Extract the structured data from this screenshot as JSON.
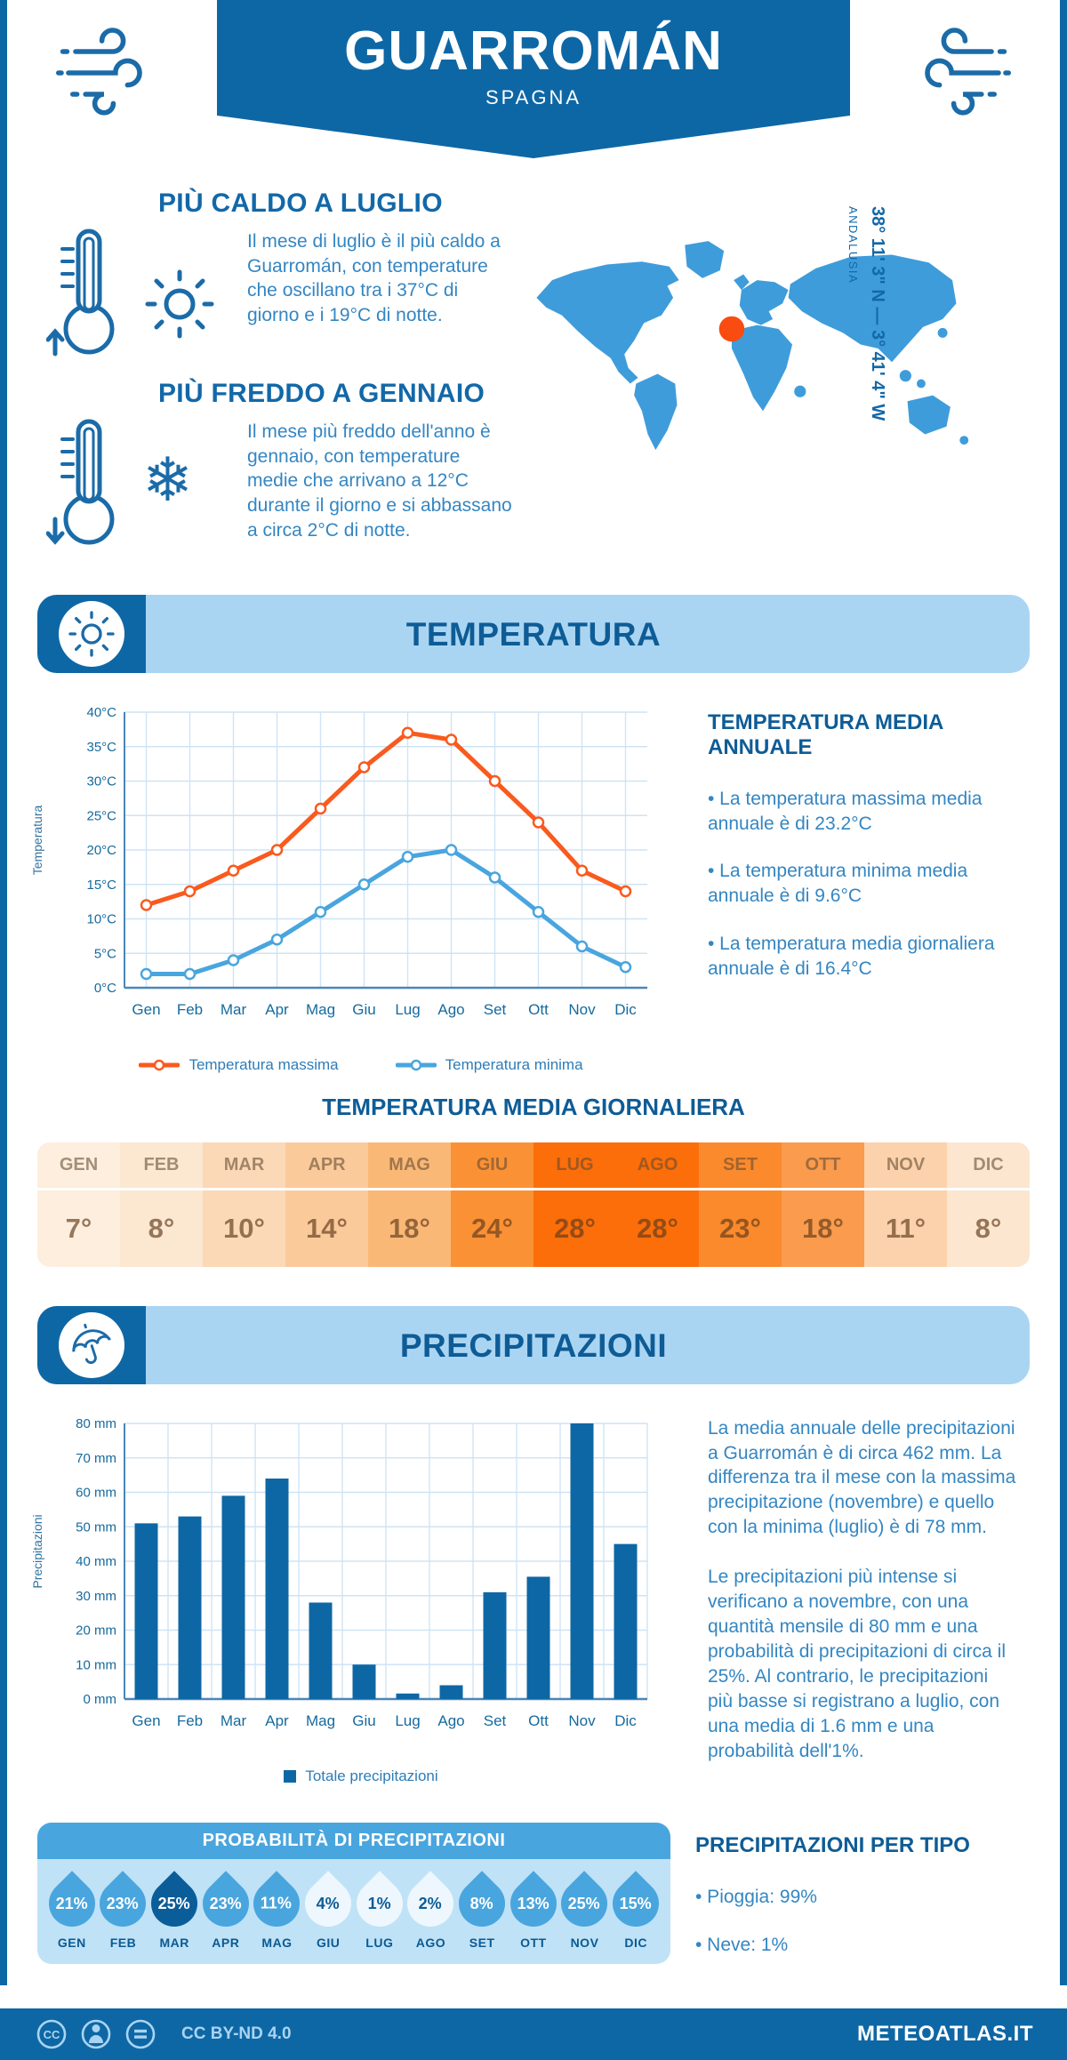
{
  "header": {
    "title": "GUARROMÁN",
    "subtitle": "SPAGNA"
  },
  "location": {
    "coordinates": "38° 11' 3\" N — 3° 41' 4\" W",
    "region": "ANDALUSIA"
  },
  "highlights": [
    {
      "title": "PIÙ CALDO A LUGLIO",
      "text": "Il mese di luglio è il più caldo a Guarromán, con temperature che oscillano tra i 37°C di giorno e i 19°C di notte."
    },
    {
      "title": "PIÙ FREDDO A GENNAIO",
      "text": "Il mese più freddo dell'anno è gennaio, con temperature medie che arrivano a 12°C durante il giorno e si abbassano a circa 2°C di notte."
    }
  ],
  "temperature_section": {
    "banner_title": "TEMPERATURA",
    "annual": {
      "title": "TEMPERATURA MEDIA ANNUALE",
      "bullets": [
        "• La temperatura massima media annuale è di 23.2°C",
        "• La temperatura minima media annuale è di 9.6°C",
        "• La temperatura media giornaliera annuale è di 16.4°C"
      ]
    },
    "daily_table": {
      "title": "TEMPERATURA MEDIA GIORNALIERA",
      "months": [
        "GEN",
        "FEB",
        "MAR",
        "APR",
        "MAG",
        "GIU",
        "LUG",
        "AGO",
        "SET",
        "OTT",
        "NOV",
        "DIC"
      ],
      "values": [
        "7°",
        "8°",
        "10°",
        "14°",
        "18°",
        "24°",
        "28°",
        "28°",
        "23°",
        "18°",
        "11°",
        "8°"
      ],
      "colors": [
        "#fdeedd",
        "#fce7d1",
        "#fbd8b6",
        "#fbca9b",
        "#fab876",
        "#fb9135",
        "#fb6e0a",
        "#fb6e0a",
        "#fb8a2c",
        "#fa9b4d",
        "#fbd2ab",
        "#fce6cf"
      ]
    }
  },
  "precipitation_section": {
    "banner_title": "PRECIPITAZIONI",
    "paragraphs": [
      "La media annuale delle precipitazioni a Guarromán è di circa 462 mm. La differenza tra il mese con la massima precipitazione (novembre) e quello con la minima (luglio) è di 78 mm.",
      "Le precipitazioni più intense si verificano a novembre, con una quantità mensile di 80 mm e una probabilità di precipitazioni di circa il 25%. Al contrario, le precipitazioni più basse si registrano a luglio, con una media di 1.6 mm e una probabilità dell'1%."
    ],
    "probability": {
      "title": "PROBABILITÀ DI PRECIPITAZIONI",
      "months": [
        "GEN",
        "FEB",
        "MAR",
        "APR",
        "MAG",
        "GIU",
        "LUG",
        "AGO",
        "SET",
        "OTT",
        "NOV",
        "DIC"
      ],
      "values": [
        "21%",
        "23%",
        "25%",
        "23%",
        "11%",
        "4%",
        "1%",
        "2%",
        "8%",
        "13%",
        "25%",
        "15%"
      ],
      "styles": [
        "mid",
        "mid",
        "dark",
        "mid",
        "mid",
        "light",
        "light",
        "light",
        "mid",
        "mid",
        "mid",
        "mid"
      ],
      "drop_colors": {
        "mid": "#49a5de",
        "dark": "#0b5d99",
        "light": "#edf7fd"
      },
      "text_colors": {
        "mid": "#ffffff",
        "dark": "#ffffff",
        "light": "#0e5c96"
      }
    },
    "types": {
      "title": "PRECIPITAZIONI PER TIPO",
      "bullets": [
        "• Pioggia: 99%",
        "• Neve: 1%"
      ]
    }
  },
  "chart_data": [
    {
      "type": "line",
      "categories": [
        "Gen",
        "Feb",
        "Mar",
        "Apr",
        "Mag",
        "Giu",
        "Lug",
        "Ago",
        "Set",
        "Ott",
        "Nov",
        "Dic"
      ],
      "series": [
        {
          "name": "Temperatura massima",
          "color": "#fa5a1e",
          "values": [
            12,
            14,
            17,
            20,
            26,
            32,
            37,
            36,
            30,
            24,
            17,
            14
          ]
        },
        {
          "name": "Temperatura minima",
          "color": "#49a5de",
          "values": [
            2,
            2,
            4,
            7,
            11,
            15,
            19,
            20,
            16,
            11,
            6,
            3
          ]
        }
      ],
      "ylabel": "Temperatura",
      "xlabel": "",
      "title": "",
      "ylim": [
        0,
        40
      ],
      "ytick": 5,
      "unit": "°C",
      "grid": true,
      "legend_position": "bottom"
    },
    {
      "type": "bar",
      "categories": [
        "Gen",
        "Feb",
        "Mar",
        "Apr",
        "Mag",
        "Giu",
        "Lug",
        "Ago",
        "Set",
        "Ott",
        "Nov",
        "Dic"
      ],
      "series": [
        {
          "name": "Totale precipitazioni",
          "color": "#0e67a5",
          "values": [
            51,
            53,
            59,
            64,
            28,
            10,
            1.6,
            4,
            31,
            35.5,
            80,
            45
          ]
        }
      ],
      "ylabel": "Precipitazioni",
      "xlabel": "",
      "title": "",
      "ylim": [
        0,
        80
      ],
      "ytick": 10,
      "unit": " mm",
      "grid": true,
      "legend_position": "bottom"
    }
  ],
  "footer": {
    "license": "CC BY-ND 4.0",
    "site": "METEOATLAS.IT"
  },
  "colors": {
    "primary": "#0e67a5",
    "heading": "#1268a8",
    "body_text": "#3486c2",
    "band_light": "#aad5f2",
    "map_blue": "#3f9cdb",
    "marker_orange": "#fa4b10",
    "line_max": "#fa5a1e",
    "line_min": "#49a5de",
    "grid": "#cfe3f5"
  }
}
